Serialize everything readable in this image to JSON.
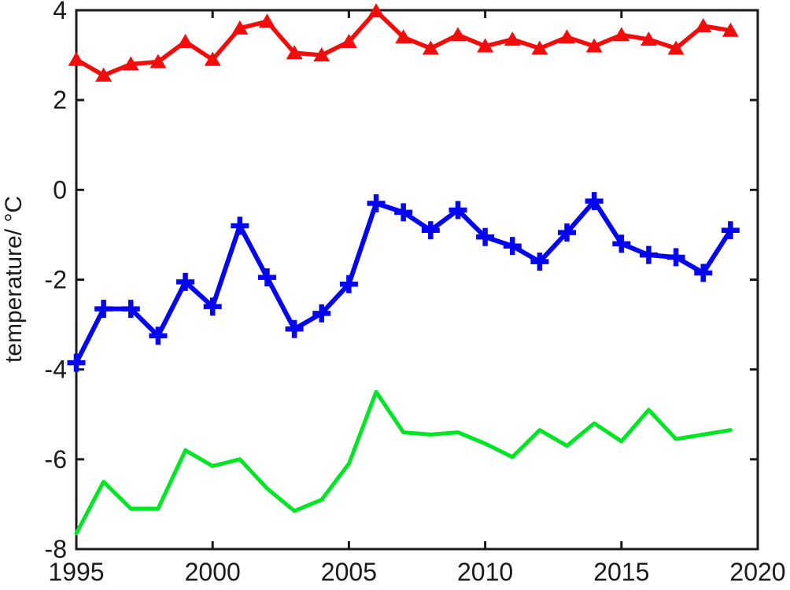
{
  "figure": {
    "background": "#ffffff",
    "axis_color": "#1a1a1a"
  },
  "chart_data": {
    "type": "line",
    "title": "",
    "xlabel": "",
    "ylabel": "temperature/ °C",
    "xlim": [
      1995,
      2020
    ],
    "ylim": [
      -8,
      4
    ],
    "x_ticks": [
      "1995",
      "2000",
      "2005",
      "2010",
      "2015",
      "2020"
    ],
    "y_ticks": [
      "4",
      "2",
      "0",
      "-2",
      "-4",
      "-6",
      "-8"
    ],
    "grid": false,
    "legend_position": "none",
    "x": [
      1995,
      1996,
      1997,
      1998,
      1999,
      2000,
      2001,
      2002,
      2003,
      2004,
      2005,
      2006,
      2007,
      2008,
      2009,
      2010,
      2011,
      2012,
      2013,
      2014,
      2015,
      2016,
      2017,
      2018,
      2019
    ],
    "series": [
      {
        "name": "red-triangle-series",
        "color": "#f20d0d",
        "marker": "triangle",
        "line_width": 5.5,
        "values": [
          2.9,
          2.55,
          2.8,
          2.85,
          3.3,
          2.9,
          3.6,
          3.75,
          3.05,
          3.0,
          3.3,
          3.98,
          3.4,
          3.15,
          3.45,
          3.2,
          3.35,
          3.15,
          3.4,
          3.2,
          3.45,
          3.35,
          3.15,
          3.65,
          3.55
        ]
      },
      {
        "name": "blue-plus-series",
        "color": "#0404f0",
        "marker": "plus",
        "line_width": 6,
        "values": [
          -3.85,
          -2.65,
          -2.65,
          -3.25,
          -2.05,
          -2.6,
          -0.8,
          -1.95,
          -3.1,
          -2.75,
          -2.1,
          -0.3,
          -0.5,
          -0.9,
          -0.45,
          -1.05,
          -1.25,
          -1.6,
          -0.95,
          -0.25,
          -1.2,
          -1.45,
          -1.5,
          -1.85,
          -0.9
        ]
      },
      {
        "name": "green-line-series",
        "color": "#00e524",
        "marker": "none",
        "line_width": 5,
        "values": [
          -7.65,
          -6.5,
          -7.1,
          -7.1,
          -5.8,
          -6.15,
          -6.0,
          -6.65,
          -7.15,
          -6.9,
          -6.1,
          -4.5,
          -5.4,
          -5.45,
          -5.4,
          -5.65,
          -5.95,
          -5.35,
          -5.7,
          -5.2,
          -5.6,
          -4.9,
          -5.55,
          -5.45,
          -5.35
        ]
      }
    ]
  }
}
